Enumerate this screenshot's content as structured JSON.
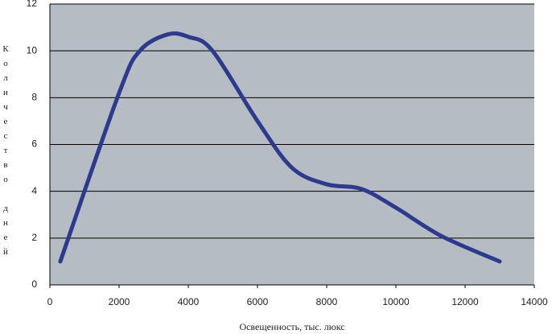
{
  "chart_data": {
    "type": "line",
    "xlabel": "Освещенность, тыс. люкс",
    "ylabel": "Количество дней",
    "x": [
      300,
      2000,
      2600,
      3400,
      4000,
      4700,
      6000,
      7000,
      8000,
      9000,
      10000,
      11300,
      13000
    ],
    "values": [
      1,
      8.2,
      10,
      10.7,
      10.6,
      10,
      7,
      5,
      4.3,
      4.1,
      3.3,
      2.1,
      1
    ],
    "color": "#2e3a8c",
    "xlim": [
      0,
      14000
    ],
    "xticks": [
      0,
      2000,
      4000,
      6000,
      8000,
      10000,
      12000,
      14000
    ],
    "ylim": [
      0,
      12
    ],
    "yticks": [
      0,
      2,
      4,
      6,
      8,
      10,
      12
    ],
    "grid": true
  }
}
